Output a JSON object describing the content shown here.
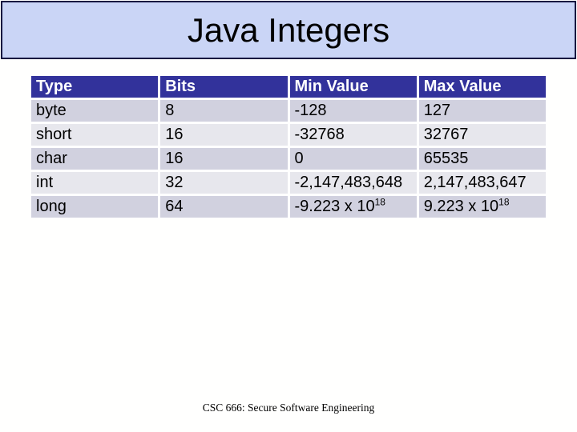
{
  "title": "Java Integers",
  "table": {
    "headers": [
      "Type",
      "Bits",
      "Min Value",
      "Max Value"
    ],
    "rows": [
      {
        "type": "byte",
        "bits": "8",
        "min": "-128",
        "max": "127"
      },
      {
        "type": "short",
        "bits": "16",
        "min": "-32768",
        "max": "32767"
      },
      {
        "type": "char",
        "bits": "16",
        "min": "0",
        "max": "65535"
      },
      {
        "type": "int",
        "bits": "32",
        "min": "-2,147,483,648",
        "max": "2,147,483,647"
      },
      {
        "type": "long",
        "bits": "64",
        "min_base": "-9.223 x 10",
        "min_exp": "18",
        "max_base": "9.223 x 10",
        "max_exp": "18"
      }
    ]
  },
  "footer": "CSC 666: Secure Software Engineering",
  "colors": {
    "page_bg": "#FFFFFE",
    "title_bg": "#CAD5F6",
    "title_border": "#101040",
    "title_text": "#000000",
    "header_bg": "#32329B",
    "header_text": "#FFFFFF",
    "row_band_dark": "#D1D1DF",
    "row_band_light": "#E7E7ED",
    "cell_gap": "#FFFFFF",
    "body_text": "#000000"
  }
}
